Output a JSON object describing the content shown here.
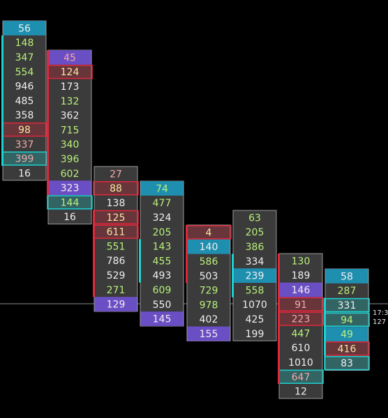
{
  "colors": {
    "background": "#000000",
    "cell_bg": "#3b3b3b",
    "cell_border": "#9a9a9a",
    "text_white": "#f0f0f0",
    "text_green": "#b8f07a",
    "text_pink": "#f4a8a8",
    "text_yellow": "#f2e9a2",
    "highlight_cyan": "#1f8fb0",
    "highlight_purple": "#6a4fc4",
    "highlight_red": "#b01f2e",
    "outline_red": "#e0283c",
    "outline_cyan": "#1fd0d0",
    "price_line": "#8a8a8a"
  },
  "chart_data": {
    "type": "footprint",
    "price_labels": [
      "17:3",
      "127"
    ],
    "candles": [
      {
        "rows": [
          {
            "value": "56",
            "color": "white",
            "fill": "cyan"
          },
          {
            "value": "148",
            "color": "green"
          },
          {
            "value": "347",
            "color": "green"
          },
          {
            "value": "554",
            "color": "green"
          },
          {
            "value": "946",
            "color": "white"
          },
          {
            "value": "485",
            "color": "white"
          },
          {
            "value": "358",
            "color": "white"
          },
          {
            "value": "98",
            "color": "yellow",
            "outline": "red"
          },
          {
            "value": "337",
            "color": "pink"
          },
          {
            "value": "399",
            "color": "pink",
            "outline": "cyan"
          },
          {
            "value": "16",
            "color": "white"
          }
        ]
      },
      {
        "rows": [
          {
            "value": "45",
            "color": "pink",
            "fill": "purple"
          },
          {
            "value": "124",
            "color": "yellow",
            "outline": "red"
          },
          {
            "value": "173",
            "color": "white"
          },
          {
            "value": "132",
            "color": "green"
          },
          {
            "value": "362",
            "color": "white"
          },
          {
            "value": "715",
            "color": "green"
          },
          {
            "value": "340",
            "color": "green"
          },
          {
            "value": "396",
            "color": "green"
          },
          {
            "value": "602",
            "color": "green"
          },
          {
            "value": "323",
            "color": "white",
            "fill": "purple"
          },
          {
            "value": "144",
            "color": "green",
            "outline": "cyan"
          },
          {
            "value": "16",
            "color": "white"
          }
        ]
      },
      {
        "rows": [
          {
            "value": "27",
            "color": "pink"
          },
          {
            "value": "88",
            "color": "yellow",
            "outline": "red"
          },
          {
            "value": "138",
            "color": "white"
          },
          {
            "value": "125",
            "color": "yellow",
            "outline": "red"
          },
          {
            "value": "611",
            "color": "yellow",
            "outline": "red"
          },
          {
            "value": "551",
            "color": "green"
          },
          {
            "value": "786",
            "color": "white"
          },
          {
            "value": "529",
            "color": "white"
          },
          {
            "value": "271",
            "color": "green"
          },
          {
            "value": "129",
            "color": "white",
            "fill": "purple"
          }
        ]
      },
      {
        "rows": [
          {
            "value": "74",
            "color": "green",
            "fill": "cyan"
          },
          {
            "value": "477",
            "color": "green"
          },
          {
            "value": "324",
            "color": "white"
          },
          {
            "value": "205",
            "color": "green"
          },
          {
            "value": "143",
            "color": "green"
          },
          {
            "value": "455",
            "color": "green"
          },
          {
            "value": "493",
            "color": "white"
          },
          {
            "value": "609",
            "color": "green"
          },
          {
            "value": "550",
            "color": "white"
          },
          {
            "value": "145",
            "color": "white",
            "fill": "purple"
          }
        ]
      },
      {
        "rows": [
          {
            "value": "4",
            "color": "yellow",
            "outline": "red"
          },
          {
            "value": "140",
            "color": "white",
            "fill": "cyan"
          },
          {
            "value": "586",
            "color": "green"
          },
          {
            "value": "503",
            "color": "white"
          },
          {
            "value": "729",
            "color": "green"
          },
          {
            "value": "978",
            "color": "green"
          },
          {
            "value": "402",
            "color": "white"
          },
          {
            "value": "155",
            "color": "white",
            "fill": "purple"
          }
        ]
      },
      {
        "rows": [
          {
            "value": "63",
            "color": "green"
          },
          {
            "value": "205",
            "color": "green"
          },
          {
            "value": "386",
            "color": "green"
          },
          {
            "value": "334",
            "color": "white"
          },
          {
            "value": "239",
            "color": "white",
            "fill": "cyan"
          },
          {
            "value": "558",
            "color": "green"
          },
          {
            "value": "1070",
            "color": "white"
          },
          {
            "value": "425",
            "color": "white"
          },
          {
            "value": "199",
            "color": "white"
          }
        ]
      },
      {
        "rows": [
          {
            "value": "130",
            "color": "green"
          },
          {
            "value": "189",
            "color": "white"
          },
          {
            "value": "146",
            "color": "white",
            "fill": "purple"
          },
          {
            "value": "91",
            "color": "pink",
            "outline": "red"
          },
          {
            "value": "223",
            "color": "pink",
            "outline": "red"
          },
          {
            "value": "447",
            "color": "green"
          },
          {
            "value": "610",
            "color": "white"
          },
          {
            "value": "1010",
            "color": "white"
          },
          {
            "value": "647",
            "color": "pink",
            "outline": "cyan"
          },
          {
            "value": "12",
            "color": "white"
          }
        ]
      },
      {
        "rows": [
          {
            "value": "58",
            "color": "white",
            "fill": "cyan"
          },
          {
            "value": "287",
            "color": "green"
          },
          {
            "value": "331",
            "color": "white",
            "outline": "cyan"
          },
          {
            "value": "94",
            "color": "green",
            "outline": "cyan"
          },
          {
            "value": "49",
            "color": "green",
            "fill": "cyan"
          },
          {
            "value": "416",
            "color": "yellow",
            "outline": "red"
          },
          {
            "value": "83",
            "color": "white",
            "outline": "cyan"
          }
        ]
      }
    ]
  }
}
